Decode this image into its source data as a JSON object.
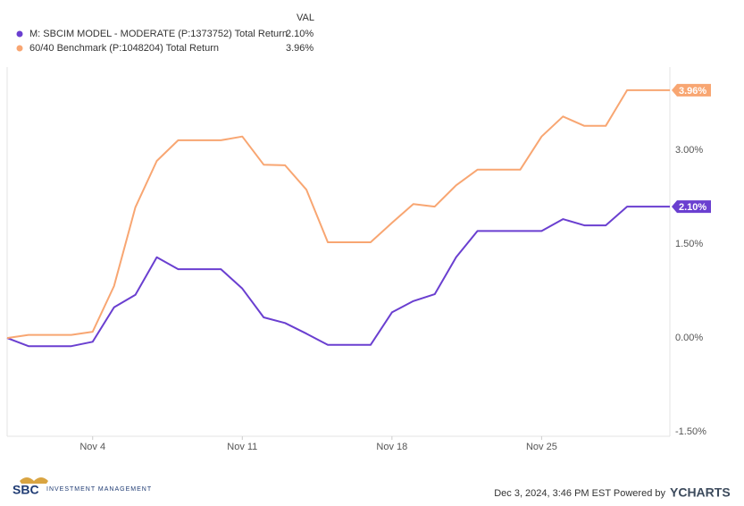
{
  "chart_data": {
    "type": "line",
    "legend_header": "VAL",
    "categories": [
      null,
      null,
      null,
      null,
      "Nov 4",
      null,
      null,
      null,
      null,
      null,
      null,
      "Nov 11",
      null,
      null,
      null,
      null,
      null,
      null,
      "Nov 18",
      null,
      null,
      null,
      null,
      null,
      null,
      "Nov 25",
      null,
      null,
      null,
      null,
      null,
      null
    ],
    "series": [
      {
        "name": "M: SBCIM MODEL - MODERATE (P:1373752) Total Return",
        "color": "#6a3fd0",
        "value_label": "2.10%",
        "values": [
          0,
          -0.13,
          -0.13,
          -0.13,
          -0.06,
          0.49,
          0.69,
          1.29,
          1.1,
          1.1,
          1.1,
          0.79,
          0.33,
          0.24,
          0.07,
          -0.11,
          -0.11,
          -0.11,
          0.41,
          0.59,
          0.7,
          1.29,
          1.71,
          1.71,
          1.71,
          1.71,
          1.9,
          1.8,
          1.8,
          2.1,
          2.1,
          2.1
        ]
      },
      {
        "name": "60/40 Benchmark (P:1048204) Total Return",
        "color": "#f8a672",
        "value_label": "3.96%",
        "values": [
          0,
          0.05,
          0.05,
          0.05,
          0.1,
          0.83,
          2.09,
          2.83,
          3.16,
          3.16,
          3.16,
          3.22,
          2.77,
          2.76,
          2.37,
          1.53,
          1.53,
          1.53,
          1.84,
          2.14,
          2.1,
          2.44,
          2.69,
          2.69,
          2.69,
          3.22,
          3.54,
          3.39,
          3.39,
          3.96,
          3.96,
          3.96
        ]
      }
    ],
    "ylim": [
      -1.57,
      4.33
    ],
    "yticks": [
      {
        "value": -1.5,
        "label": "-1.50%"
      },
      {
        "value": 0,
        "label": "0.00%"
      },
      {
        "value": 1.5,
        "label": "1.50%"
      },
      {
        "value": 3,
        "label": "3.00%"
      }
    ],
    "grid": false,
    "footer": {
      "timestamp": "Dec 3, 2024, 3:46 PM EST Powered by",
      "brand": "YCHARTS",
      "logo": "SBC",
      "logo_sub": "INVESTMENT MANAGEMENT"
    }
  }
}
